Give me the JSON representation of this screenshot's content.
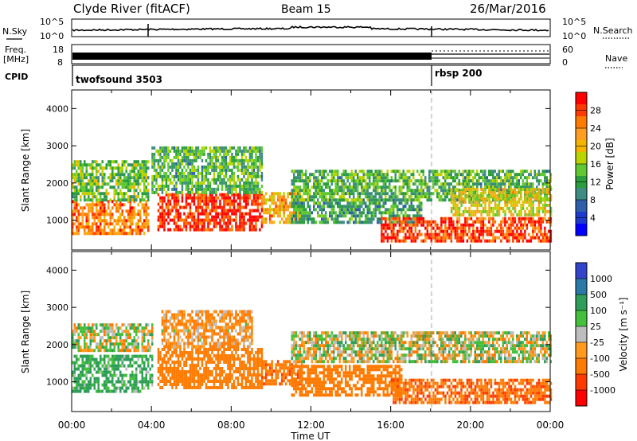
{
  "header": {
    "station": "Clyde River (fitACF)",
    "beam": "Beam 15",
    "date": "26/Mar/2016"
  },
  "noise_panel": {
    "left_label": "N.Sky",
    "right_label": "N.Search",
    "tick_top": "10^5",
    "tick_bottom": "10^0"
  },
  "freq_panel": {
    "left_label_1": "Freq.",
    "left_label_2": "[MHz]",
    "left_ticks": [
      "18",
      "8"
    ],
    "right_label": "Nave",
    "right_ticks": [
      "60",
      "0"
    ]
  },
  "cpid_panel": {
    "label": "CPID",
    "modes": [
      {
        "name": "twofsound 3503",
        "start_hour": 0
      },
      {
        "name": "rbsp 200",
        "start_hour": 18
      }
    ]
  },
  "x_axis": {
    "label": "Time UT",
    "ticks": [
      "00:00",
      "04:00",
      "08:00",
      "12:00",
      "16:00",
      "20:00",
      "00:00"
    ],
    "range_hours": [
      0,
      24
    ]
  },
  "power_colorbar": {
    "label": "Power [dB]",
    "ticks": [
      "28",
      "24",
      "20",
      "16",
      "12",
      "8",
      "4"
    ],
    "colors": [
      "#ff0000",
      "#ff3a00",
      "#ff7a00",
      "#ff9e20",
      "#f5b400",
      "#b9d400",
      "#5fc832",
      "#2a9e3c",
      "#3f8c82",
      "#2e5faa",
      "#1d3ad0",
      "#0000ff"
    ]
  },
  "velocity_colorbar": {
    "label": "Velocity [m s⁻¹]",
    "ticks": [
      "1000",
      "500",
      "100",
      "25",
      "-25",
      "-100",
      "-500",
      "-1000"
    ],
    "colors": [
      "#3344cc",
      "#2a7aa8",
      "#2f9e5a",
      "#44c03a",
      "#bdbdbd",
      "#ff9a1e",
      "#ff7a00",
      "#ff3a00",
      "#ff0000"
    ]
  },
  "chart_data": [
    {
      "type": "heatmap",
      "title": "",
      "xlabel": "Time UT",
      "ylabel": "Slant Range [km]",
      "yticks": [
        "1000",
        "2000",
        "3000",
        "4000"
      ],
      "ylim": [
        200,
        4500
      ],
      "xlim": [
        0,
        24
      ],
      "colorbar": "Power [dB]",
      "bands": [
        {
          "t0": 0.0,
          "t1": 3.8,
          "r0": 600,
          "r1": 1500,
          "level": 0.8
        },
        {
          "t0": 0.0,
          "t1": 3.8,
          "r0": 1500,
          "r1": 2600,
          "level": 0.45
        },
        {
          "t0": 4.3,
          "t1": 9.5,
          "r0": 700,
          "r1": 1700,
          "level": 0.95
        },
        {
          "t0": 4.0,
          "t1": 9.5,
          "r0": 1700,
          "r1": 2900,
          "level": 0.4
        },
        {
          "t0": 9.5,
          "t1": 11.5,
          "r0": 900,
          "r1": 1700,
          "level": 0.7
        },
        {
          "t0": 11.0,
          "t1": 17.5,
          "r0": 900,
          "r1": 1500,
          "level": 0.35
        },
        {
          "t0": 11.0,
          "t1": 24.0,
          "r0": 1500,
          "r1": 2300,
          "level": 0.4
        },
        {
          "t0": 15.5,
          "t1": 24.0,
          "r0": 400,
          "r1": 1000,
          "level": 0.9
        },
        {
          "t0": 19.0,
          "t1": 24.0,
          "r0": 1100,
          "r1": 1800,
          "level": 0.6
        }
      ]
    },
    {
      "type": "heatmap",
      "title": "",
      "xlabel": "Time UT",
      "ylabel": "Slant Range [km]",
      "yticks": [
        "1000",
        "2000",
        "3000",
        "4000"
      ],
      "ylim": [
        200,
        4500
      ],
      "xlim": [
        0,
        24
      ],
      "colorbar": "Velocity [m s⁻¹]",
      "bands": [
        {
          "t0": 0.0,
          "t1": 4.0,
          "r0": 1800,
          "r1": 2500,
          "vel": 0
        },
        {
          "t0": 0.0,
          "t1": 4.0,
          "r0": 700,
          "r1": 1700,
          "vel": 150
        },
        {
          "t0": 4.3,
          "t1": 9.5,
          "r0": 800,
          "r1": 1900,
          "vel": -300
        },
        {
          "t0": 4.5,
          "t1": 9.0,
          "r0": 1900,
          "r1": 2900,
          "vel": -120
        },
        {
          "t0": 9.5,
          "t1": 11.5,
          "r0": 900,
          "r1": 1500,
          "vel": -400
        },
        {
          "t0": 11.0,
          "t1": 24.0,
          "r0": 1500,
          "r1": 2300,
          "vel": 0
        },
        {
          "t0": 11.0,
          "t1": 16.5,
          "r0": 600,
          "r1": 1400,
          "vel": -300
        },
        {
          "t0": 16.0,
          "t1": 24.0,
          "r0": 400,
          "r1": 1000,
          "vel": -450
        }
      ]
    }
  ]
}
